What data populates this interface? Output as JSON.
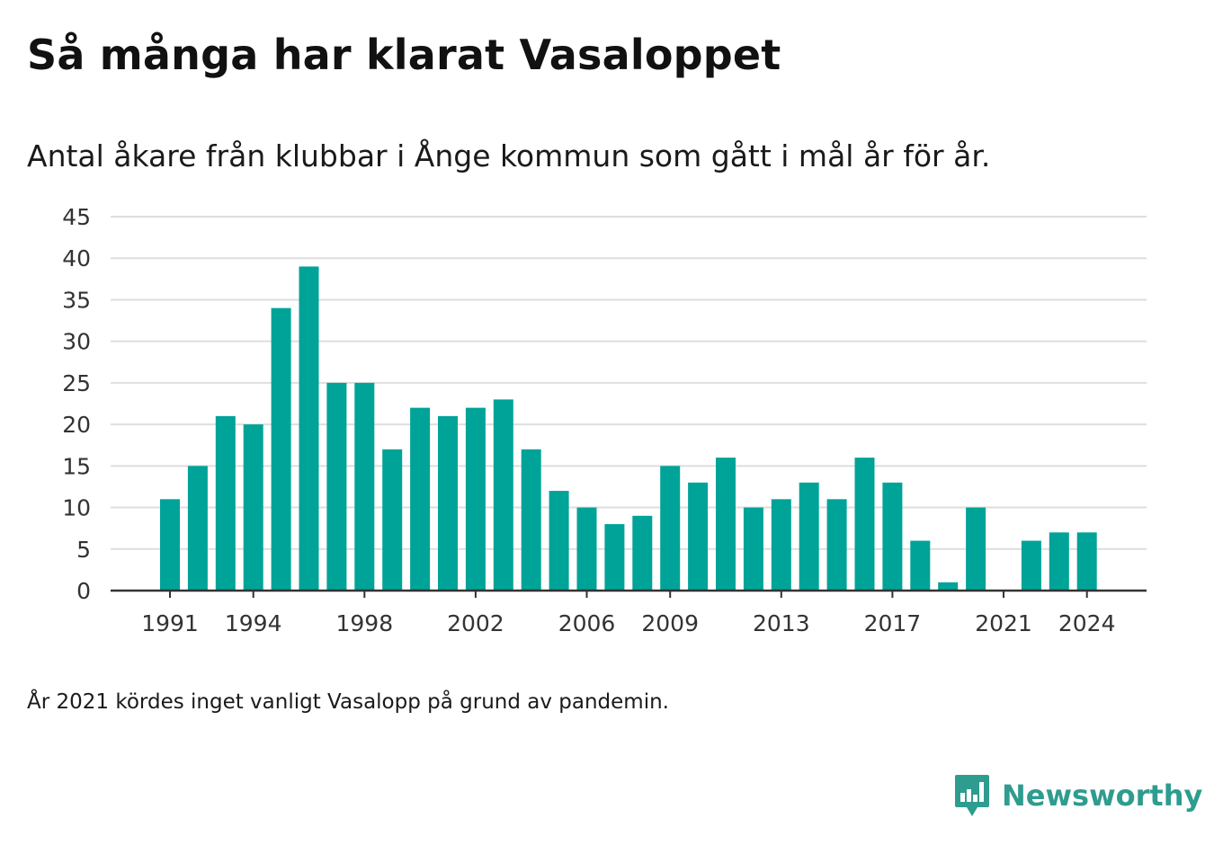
{
  "header": {
    "title": "Så många har klarat Vasaloppet",
    "subtitle": "Antal åkare från klubbar i Ånge kommun som gått i mål år för år."
  },
  "footer": {
    "note": "År 2021 kördes inget vanligt Vasalopp på grund av pandemin.",
    "brand_name": "Newsworthy",
    "brand_icon": "newsworthy-logo-icon"
  },
  "colors": {
    "bar": "#00a398",
    "grid": "#dedede",
    "axis": "#333333",
    "brand": "#2e9c8f"
  },
  "chart_data": {
    "type": "bar",
    "x": [
      1991,
      1992,
      1993,
      1994,
      1995,
      1996,
      1997,
      1998,
      1999,
      2000,
      2001,
      2002,
      2003,
      2004,
      2005,
      2006,
      2007,
      2008,
      2009,
      2010,
      2011,
      2012,
      2013,
      2014,
      2015,
      2016,
      2017,
      2018,
      2019,
      2020,
      2021,
      2022,
      2023,
      2024
    ],
    "values": [
      11,
      15,
      21,
      20,
      34,
      39,
      25,
      25,
      17,
      22,
      21,
      22,
      23,
      17,
      12,
      10,
      8,
      9,
      15,
      13,
      16,
      10,
      11,
      13,
      11,
      16,
      13,
      6,
      1,
      10,
      0,
      6,
      7,
      7
    ],
    "x_tick_labels": [
      1991,
      1994,
      1998,
      2002,
      2006,
      2009,
      2013,
      2017,
      2021,
      2024
    ],
    "y_ticks": [
      0,
      5,
      10,
      15,
      20,
      25,
      30,
      35,
      40,
      45
    ],
    "ylim": [
      0,
      45
    ],
    "grid": true,
    "legend": "none"
  }
}
